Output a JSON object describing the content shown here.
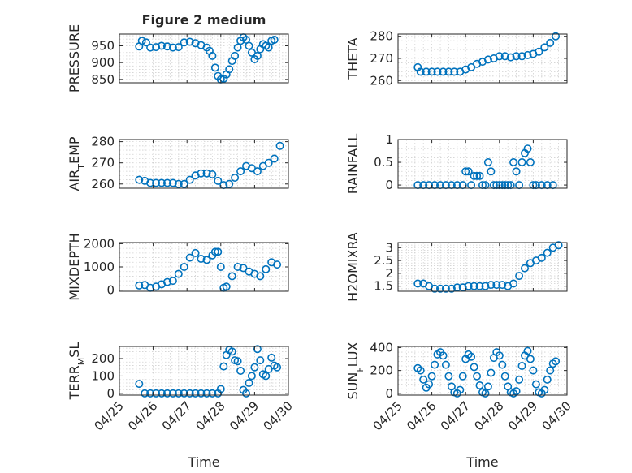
{
  "figure": {
    "title": "Figure 2 medium",
    "xlabel": "Time",
    "marker_color": "#0072BD",
    "grid": true
  },
  "chart_data": [
    {
      "type": "scatter",
      "ylabel": "PRESSURE",
      "title": "Figure 2 medium",
      "ylim": [
        840,
        985
      ],
      "yticks": [
        850,
        900,
        950
      ],
      "xlim": [
        "04/25",
        "04/30"
      ],
      "xticklabels": [],
      "x": [
        "2022-04-25T14:00",
        "2022-04-25T16:00",
        "2022-04-25T19:00",
        "2022-04-25T22:00",
        "2022-04-26T02:00",
        "2022-04-26T06:00",
        "2022-04-26T10:00",
        "2022-04-26T14:00",
        "2022-04-26T18:00",
        "2022-04-26T22:00",
        "2022-04-27T02:00",
        "2022-04-27T06:00",
        "2022-04-27T10:00",
        "2022-04-27T14:00",
        "2022-04-27T16:00",
        "2022-04-27T18:00",
        "2022-04-27T20:00",
        "2022-04-27T22:00",
        "2022-04-28T00:00",
        "2022-04-28T02:00",
        "2022-04-28T04:00",
        "2022-04-28T06:00",
        "2022-04-28T08:00",
        "2022-04-28T10:00",
        "2022-04-28T12:00",
        "2022-04-28T14:00",
        "2022-04-28T16:00",
        "2022-04-28T18:00",
        "2022-04-28T20:00",
        "2022-04-28T22:00",
        "2022-04-29T00:00",
        "2022-04-29T02:00",
        "2022-04-29T04:00",
        "2022-04-29T06:00",
        "2022-04-29T08:00",
        "2022-04-29T10:00",
        "2022-04-29T12:00",
        "2022-04-29T14:00"
      ],
      "y": [
        948,
        965,
        960,
        945,
        946,
        950,
        948,
        945,
        946,
        960,
        962,
        958,
        952,
        945,
        935,
        920,
        885,
        860,
        850,
        852,
        865,
        880,
        905,
        920,
        945,
        965,
        975,
        968,
        950,
        930,
        910,
        920,
        940,
        955,
        950,
        945,
        965,
        968
      ]
    },
    {
      "type": "scatter",
      "ylabel": "THETA",
      "ylim": [
        259,
        281
      ],
      "yticks": [
        260,
        270,
        280
      ],
      "xlim": [
        "04/25",
        "04/30"
      ],
      "xticklabels": [],
      "x": [
        "2022-04-25T14:00",
        "2022-04-25T16:00",
        "2022-04-25T20:00",
        "2022-04-26T00:00",
        "2022-04-26T04:00",
        "2022-04-26T08:00",
        "2022-04-26T12:00",
        "2022-04-26T16:00",
        "2022-04-26T20:00",
        "2022-04-27T00:00",
        "2022-04-27T04:00",
        "2022-04-27T08:00",
        "2022-04-27T12:00",
        "2022-04-27T16:00",
        "2022-04-27T20:00",
        "2022-04-28T00:00",
        "2022-04-28T04:00",
        "2022-04-28T08:00",
        "2022-04-28T12:00",
        "2022-04-28T16:00",
        "2022-04-28T20:00",
        "2022-04-29T00:00",
        "2022-04-29T04:00",
        "2022-04-29T08:00",
        "2022-04-29T12:00",
        "2022-04-29T16:00"
      ],
      "y": [
        266,
        264,
        264,
        264,
        264,
        264,
        264,
        264,
        264,
        265,
        266,
        267.5,
        268.5,
        269.5,
        270,
        271,
        271,
        270.5,
        271,
        271,
        271.5,
        272,
        273,
        275,
        277,
        280
      ]
    },
    {
      "type": "scatter",
      "ylabel": "AIR_TEMP",
      "ylim": [
        258,
        281
      ],
      "yticks": [
        260,
        270,
        280
      ],
      "xlim": [
        "04/25",
        "04/30"
      ],
      "xticklabels": [],
      "x": [
        "2022-04-25T14:00",
        "2022-04-25T18:00",
        "2022-04-25T22:00",
        "2022-04-26T02:00",
        "2022-04-26T06:00",
        "2022-04-26T10:00",
        "2022-04-26T14:00",
        "2022-04-26T18:00",
        "2022-04-26T22:00",
        "2022-04-27T02:00",
        "2022-04-27T06:00",
        "2022-04-27T10:00",
        "2022-04-27T14:00",
        "2022-04-27T18:00",
        "2022-04-27T22:00",
        "2022-04-28T02:00",
        "2022-04-28T06:00",
        "2022-04-28T10:00",
        "2022-04-28T14:00",
        "2022-04-28T18:00",
        "2022-04-28T22:00",
        "2022-04-29T02:00",
        "2022-04-29T06:00",
        "2022-04-29T10:00",
        "2022-04-29T14:00",
        "2022-04-29T18:00"
      ],
      "y": [
        262,
        261.5,
        260.5,
        260.5,
        260.5,
        260.5,
        260.5,
        260,
        260,
        262,
        264,
        265,
        265,
        264.5,
        261.5,
        259.5,
        260,
        263,
        266,
        268.5,
        267.5,
        266,
        268.5,
        270,
        272,
        278
      ]
    },
    {
      "type": "scatter",
      "ylabel": "RAINFALL",
      "ylim": [
        -0.07,
        1.0
      ],
      "yticks": [
        0,
        0.5,
        1
      ],
      "xlim": [
        "04/25",
        "04/30"
      ],
      "xticklabels": [],
      "x": [
        "2022-04-25T14:00",
        "2022-04-25T18:00",
        "2022-04-25T22:00",
        "2022-04-26T02:00",
        "2022-04-26T06:00",
        "2022-04-26T10:00",
        "2022-04-26T14:00",
        "2022-04-26T18:00",
        "2022-04-26T22:00",
        "2022-04-27T00:00",
        "2022-04-27T02:00",
        "2022-04-27T04:00",
        "2022-04-27T06:00",
        "2022-04-27T08:00",
        "2022-04-27T10:00",
        "2022-04-27T12:00",
        "2022-04-27T14:00",
        "2022-04-27T16:00",
        "2022-04-27T18:00",
        "2022-04-27T20:00",
        "2022-04-27T22:00",
        "2022-04-28T00:00",
        "2022-04-28T02:00",
        "2022-04-28T04:00",
        "2022-04-28T06:00",
        "2022-04-28T08:00",
        "2022-04-28T10:00",
        "2022-04-28T12:00",
        "2022-04-28T14:00",
        "2022-04-28T16:00",
        "2022-04-28T18:00",
        "2022-04-28T20:00",
        "2022-04-28T22:00",
        "2022-04-29T00:00",
        "2022-04-29T02:00",
        "2022-04-29T06:00",
        "2022-04-29T10:00",
        "2022-04-29T14:00"
      ],
      "y": [
        0,
        0,
        0,
        0,
        0,
        0,
        0,
        0,
        0,
        0.3,
        0.3,
        0,
        0.2,
        0.2,
        0.2,
        0,
        0,
        0.5,
        0.3,
        0,
        0,
        0,
        0,
        0,
        0,
        0,
        0.5,
        0.3,
        0,
        0.5,
        0.7,
        0.8,
        0.5,
        0,
        0,
        0,
        0,
        0
      ]
    },
    {
      "type": "scatter",
      "ylabel": "MIXDEPTH",
      "ylim": [
        -50,
        2050
      ],
      "yticks": [
        0,
        1000,
        2000
      ],
      "xlim": [
        "04/25",
        "04/30"
      ],
      "xticklabels": [],
      "x": [
        "2022-04-25T14:00",
        "2022-04-25T18:00",
        "2022-04-25T22:00",
        "2022-04-26T02:00",
        "2022-04-26T06:00",
        "2022-04-26T10:00",
        "2022-04-26T14:00",
        "2022-04-26T18:00",
        "2022-04-26T22:00",
        "2022-04-27T02:00",
        "2022-04-27T06:00",
        "2022-04-27T10:00",
        "2022-04-27T14:00",
        "2022-04-27T18:00",
        "2022-04-27T20:00",
        "2022-04-27T22:00",
        "2022-04-28T00:00",
        "2022-04-28T02:00",
        "2022-04-28T04:00",
        "2022-04-28T08:00",
        "2022-04-28T12:00",
        "2022-04-28T16:00",
        "2022-04-28T20:00",
        "2022-04-29T00:00",
        "2022-04-29T04:00",
        "2022-04-29T08:00",
        "2022-04-29T12:00",
        "2022-04-29T16:00"
      ],
      "y": [
        200,
        220,
        100,
        150,
        250,
        350,
        400,
        700,
        1000,
        1400,
        1600,
        1350,
        1300,
        1500,
        1650,
        1650,
        1000,
        100,
        150,
        600,
        1000,
        950,
        800,
        700,
        600,
        900,
        1200,
        1100
      ]
    },
    {
      "type": "scatter",
      "ylabel": "H2OMIXRA",
      "ylim": [
        1.3,
        3.2
      ],
      "yticks": [
        1.5,
        2,
        2.5,
        3
      ],
      "yticklabels": [
        "1.5",
        "2",
        "2.5",
        "3"
      ],
      "xlim": [
        "04/25",
        "04/30"
      ],
      "xticklabels": [],
      "x": [
        "2022-04-25T14:00",
        "2022-04-25T18:00",
        "2022-04-25T22:00",
        "2022-04-26T02:00",
        "2022-04-26T06:00",
        "2022-04-26T10:00",
        "2022-04-26T14:00",
        "2022-04-26T18:00",
        "2022-04-26T22:00",
        "2022-04-27T02:00",
        "2022-04-27T06:00",
        "2022-04-27T10:00",
        "2022-04-27T14:00",
        "2022-04-27T18:00",
        "2022-04-27T22:00",
        "2022-04-28T02:00",
        "2022-04-28T06:00",
        "2022-04-28T10:00",
        "2022-04-28T14:00",
        "2022-04-28T18:00",
        "2022-04-28T22:00",
        "2022-04-29T02:00",
        "2022-04-29T06:00",
        "2022-04-29T10:00",
        "2022-04-29T14:00",
        "2022-04-29T18:00"
      ],
      "y": [
        1.6,
        1.6,
        1.5,
        1.4,
        1.4,
        1.4,
        1.4,
        1.45,
        1.45,
        1.5,
        1.5,
        1.5,
        1.5,
        1.55,
        1.55,
        1.55,
        1.5,
        1.6,
        1.9,
        2.2,
        2.4,
        2.5,
        2.6,
        2.8,
        3.0,
        3.1
      ]
    },
    {
      "type": "scatter",
      "ylabel": "TERR_MSL",
      "ylim": [
        -10,
        270
      ],
      "yticks": [
        0,
        100,
        200
      ],
      "xlim": [
        "04/25",
        "04/30"
      ],
      "xticklabels": [
        "04/25",
        "04/26",
        "04/27",
        "04/28",
        "04/29",
        "04/30"
      ],
      "x": [
        "2022-04-25T14:00",
        "2022-04-25T18:00",
        "2022-04-25T22:00",
        "2022-04-26T02:00",
        "2022-04-26T06:00",
        "2022-04-26T10:00",
        "2022-04-26T14:00",
        "2022-04-26T18:00",
        "2022-04-26T22:00",
        "2022-04-27T02:00",
        "2022-04-27T06:00",
        "2022-04-27T10:00",
        "2022-04-27T14:00",
        "2022-04-27T18:00",
        "2022-04-27T22:00",
        "2022-04-28T00:00",
        "2022-04-28T02:00",
        "2022-04-28T04:00",
        "2022-04-28T06:00",
        "2022-04-28T08:00",
        "2022-04-28T10:00",
        "2022-04-28T12:00",
        "2022-04-28T14:00",
        "2022-04-28T16:00",
        "2022-04-28T18:00",
        "2022-04-28T20:00",
        "2022-04-28T22:00",
        "2022-04-29T00:00",
        "2022-04-29T02:00",
        "2022-04-29T04:00",
        "2022-04-29T06:00",
        "2022-04-29T08:00",
        "2022-04-29T10:00",
        "2022-04-29T12:00",
        "2022-04-29T14:00",
        "2022-04-29T16:00"
      ],
      "y": [
        55,
        0,
        0,
        0,
        0,
        0,
        0,
        0,
        0,
        0,
        0,
        0,
        0,
        0,
        0,
        25,
        155,
        220,
        250,
        240,
        190,
        185,
        130,
        20,
        0,
        60,
        100,
        150,
        255,
        190,
        110,
        100,
        140,
        205,
        160,
        150
      ]
    },
    {
      "type": "scatter",
      "ylabel": "SUN_FLUX",
      "ylim": [
        -15,
        410
      ],
      "yticks": [
        0,
        200,
        400
      ],
      "xlim": [
        "04/25",
        "04/30"
      ],
      "xticklabels": [
        "04/25",
        "04/26",
        "04/27",
        "04/28",
        "04/29",
        "04/30"
      ],
      "x": [
        "2022-04-25T14:00",
        "2022-04-25T16:00",
        "2022-04-25T18:00",
        "2022-04-25T20:00",
        "2022-04-25T22:00",
        "2022-04-26T00:00",
        "2022-04-26T02:00",
        "2022-04-26T04:00",
        "2022-04-26T06:00",
        "2022-04-26T08:00",
        "2022-04-26T10:00",
        "2022-04-26T12:00",
        "2022-04-26T14:00",
        "2022-04-26T16:00",
        "2022-04-26T18:00",
        "2022-04-26T20:00",
        "2022-04-26T22:00",
        "2022-04-27T00:00",
        "2022-04-27T02:00",
        "2022-04-27T04:00",
        "2022-04-27T06:00",
        "2022-04-27T08:00",
        "2022-04-27T10:00",
        "2022-04-27T12:00",
        "2022-04-27T14:00",
        "2022-04-27T16:00",
        "2022-04-27T18:00",
        "2022-04-27T20:00",
        "2022-04-27T22:00",
        "2022-04-28T00:00",
        "2022-04-28T02:00",
        "2022-04-28T04:00",
        "2022-04-28T06:00",
        "2022-04-28T08:00",
        "2022-04-28T10:00",
        "2022-04-28T12:00",
        "2022-04-28T14:00",
        "2022-04-28T16:00",
        "2022-04-28T18:00",
        "2022-04-28T20:00",
        "2022-04-28T22:00",
        "2022-04-29T00:00",
        "2022-04-29T02:00",
        "2022-04-29T04:00",
        "2022-04-29T06:00",
        "2022-04-29T08:00",
        "2022-04-29T10:00",
        "2022-04-29T12:00",
        "2022-04-29T14:00",
        "2022-04-29T16:00"
      ],
      "y": [
        220,
        200,
        120,
        50,
        80,
        150,
        250,
        340,
        360,
        330,
        250,
        150,
        60,
        10,
        0,
        30,
        150,
        300,
        340,
        320,
        230,
        150,
        70,
        10,
        0,
        60,
        180,
        310,
        360,
        330,
        250,
        150,
        60,
        10,
        0,
        20,
        120,
        240,
        330,
        370,
        300,
        200,
        80,
        10,
        0,
        30,
        120,
        200,
        260,
        280
      ]
    }
  ]
}
